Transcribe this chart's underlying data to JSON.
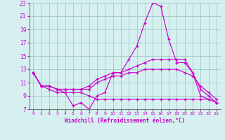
{
  "title": "",
  "xlabel": "Windchill (Refroidissement éolien,°C)",
  "ylabel": "",
  "background_color": "#d6f0f0",
  "grid_color": "#a0c8c8",
  "line_color": "#cc00cc",
  "xlim": [
    -0.5,
    23.5
  ],
  "ylim": [
    7,
    23
  ],
  "xticks": [
    0,
    1,
    2,
    3,
    4,
    5,
    6,
    7,
    8,
    9,
    10,
    11,
    12,
    13,
    14,
    15,
    16,
    17,
    18,
    19,
    20,
    21,
    22,
    23
  ],
  "yticks": [
    7,
    9,
    11,
    13,
    15,
    17,
    19,
    21,
    23
  ],
  "line1_y": [
    12.5,
    10.5,
    10.5,
    10.0,
    9.5,
    7.5,
    8.0,
    7.0,
    9.0,
    9.5,
    12.5,
    12.5,
    14.5,
    16.5,
    20.0,
    23.0,
    22.5,
    17.5,
    14.0,
    14.0,
    12.5,
    9.0,
    8.5,
    8.0
  ],
  "line2_y": [
    12.5,
    10.5,
    10.5,
    10.0,
    10.0,
    10.0,
    10.0,
    10.5,
    11.5,
    12.0,
    12.5,
    12.5,
    13.0,
    13.5,
    14.0,
    14.5,
    14.5,
    14.5,
    14.5,
    14.5,
    12.5,
    10.0,
    9.0,
    8.0
  ],
  "line3_y": [
    12.5,
    10.5,
    10.5,
    10.0,
    10.0,
    10.0,
    10.0,
    10.0,
    11.0,
    11.5,
    12.0,
    12.0,
    12.5,
    12.5,
    13.0,
    13.0,
    13.0,
    13.0,
    13.0,
    12.5,
    12.0,
    10.5,
    9.5,
    8.5
  ],
  "line4_y": [
    12.5,
    10.5,
    10.0,
    9.5,
    9.5,
    9.5,
    9.5,
    9.0,
    8.5,
    8.5,
    8.5,
    8.5,
    8.5,
    8.5,
    8.5,
    8.5,
    8.5,
    8.5,
    8.5,
    8.5,
    8.5,
    8.5,
    8.5,
    8.0
  ]
}
